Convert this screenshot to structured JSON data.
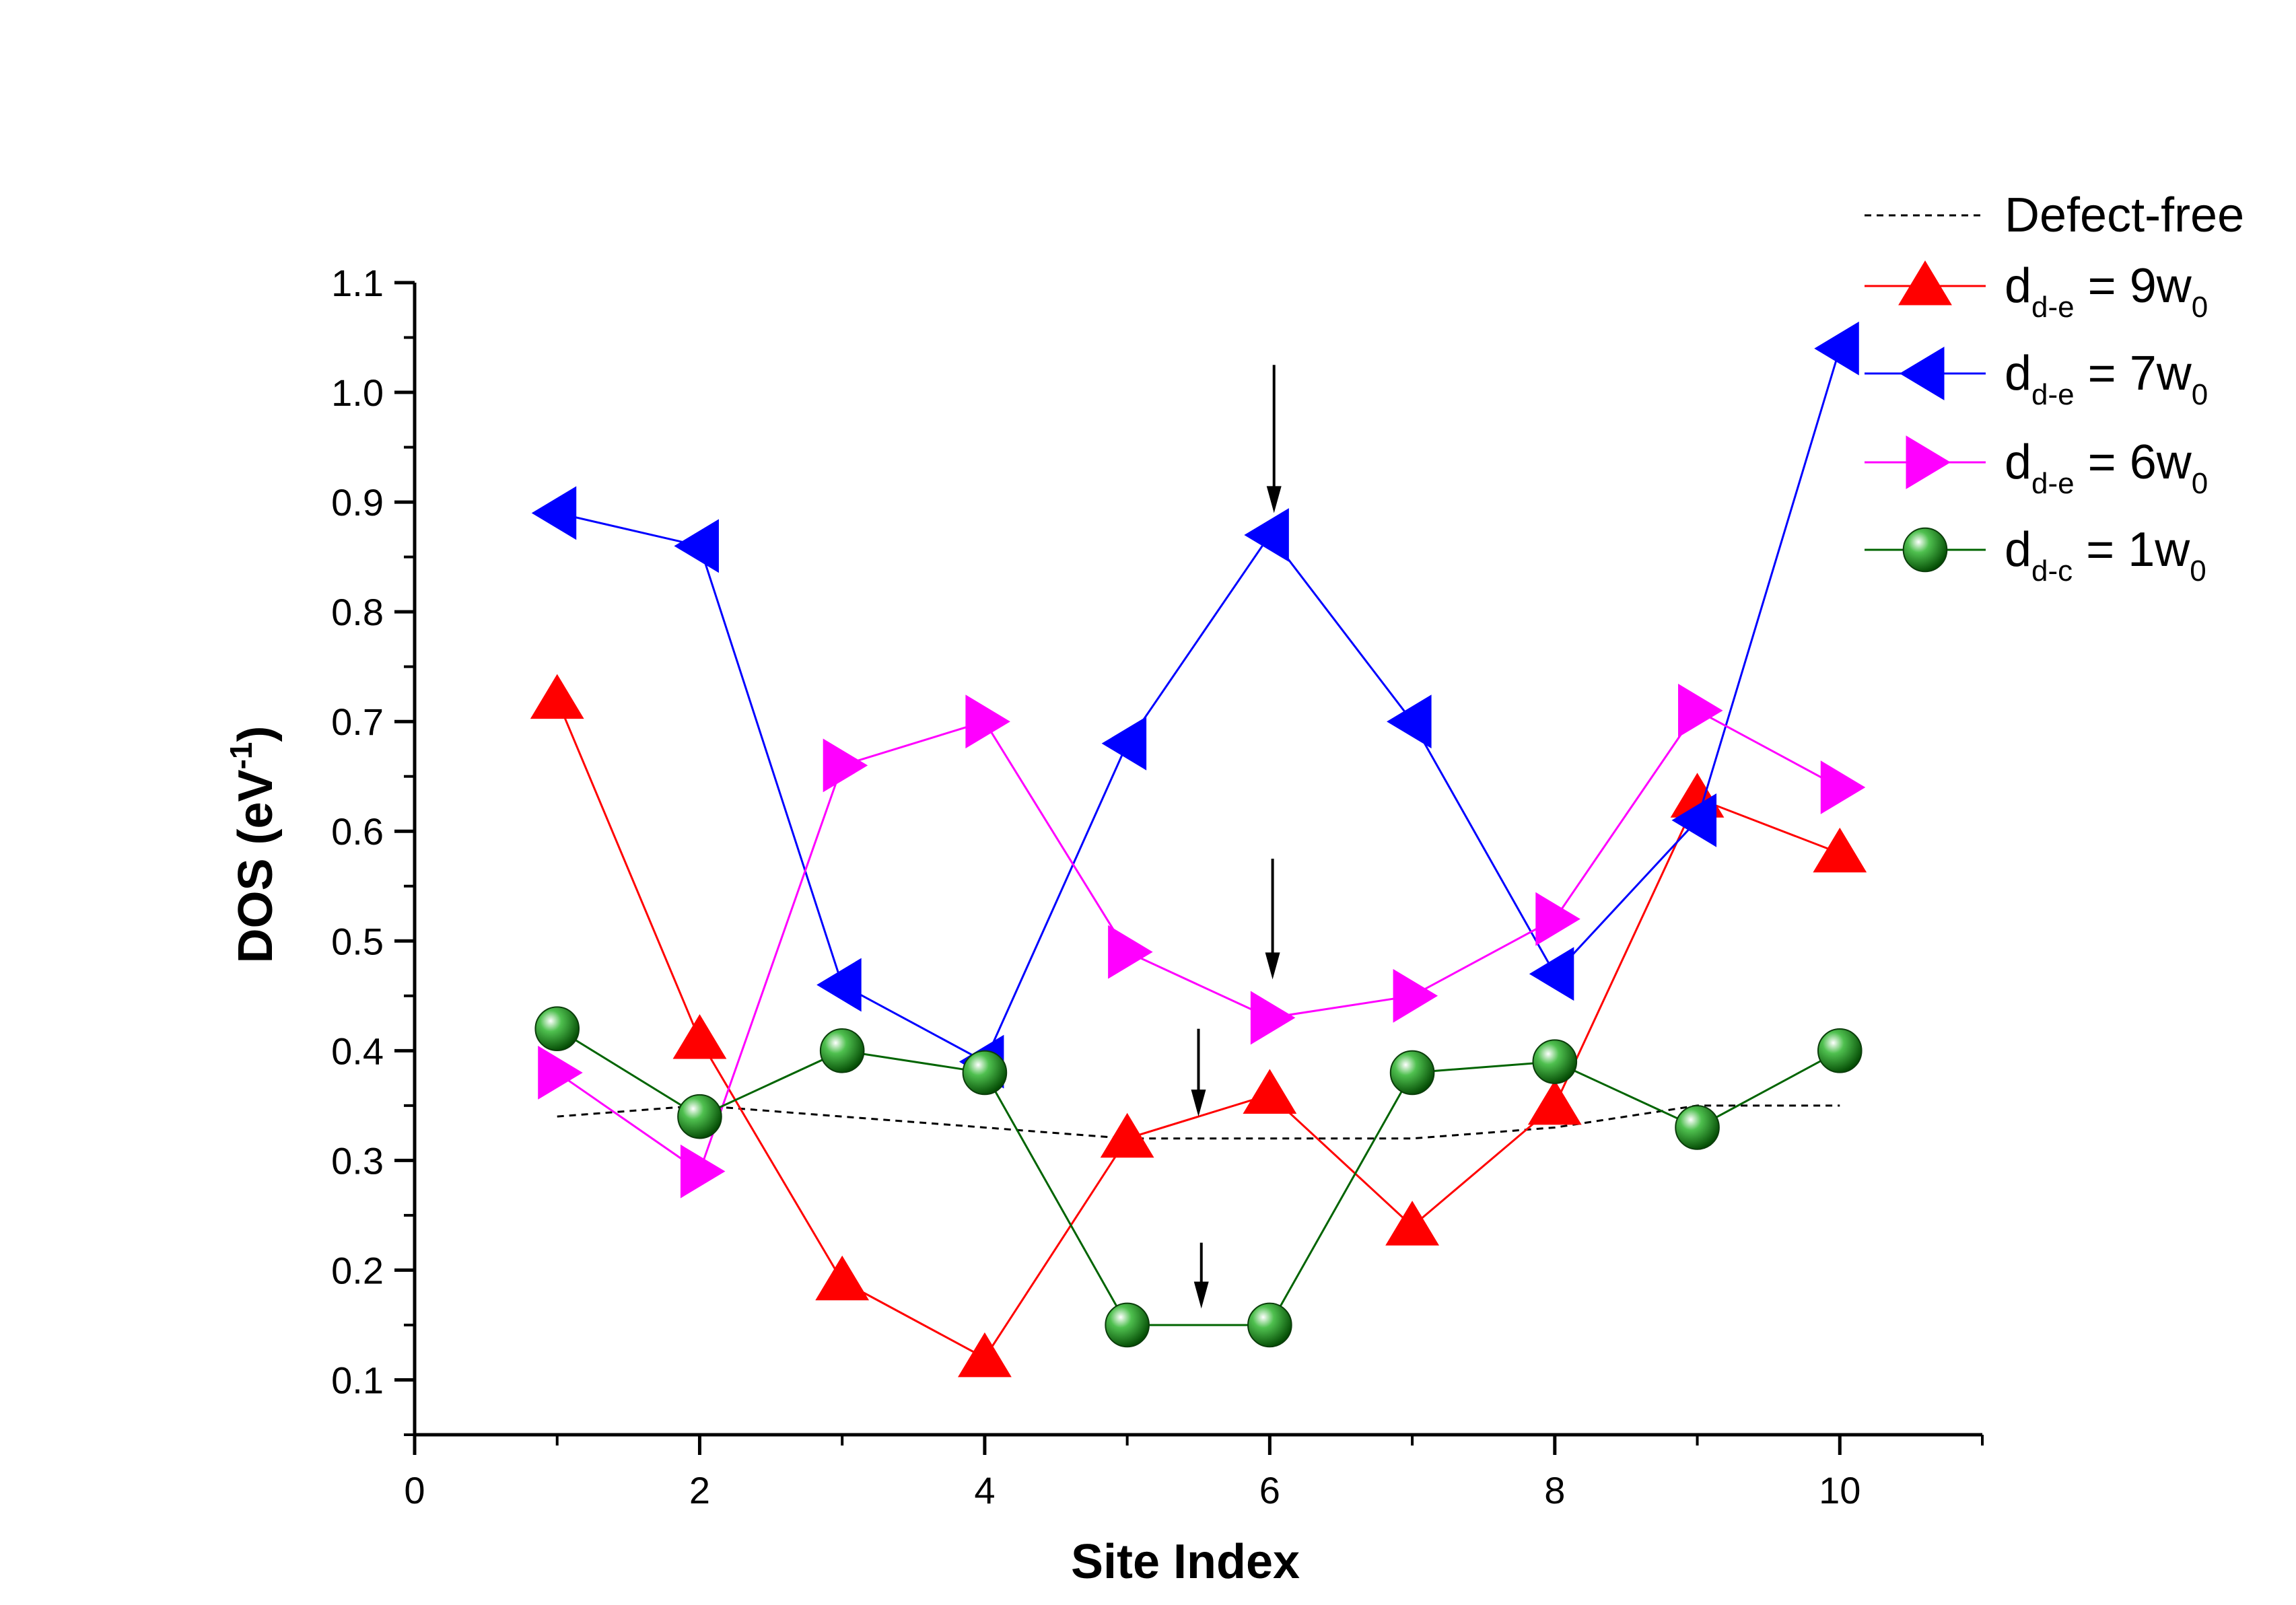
{
  "chart_data": {
    "type": "line",
    "title": "",
    "xlabel": "Site Index",
    "ylabel": {
      "main": "DOS (eV",
      "sup": "-1",
      "end": ")"
    },
    "xlim": [
      0,
      11
    ],
    "ylim": [
      0.05,
      1.1
    ],
    "x_ticks": [
      0,
      2,
      4,
      6,
      8,
      10
    ],
    "x_tick_labels": [
      "0",
      "2",
      "4",
      "6",
      "8",
      "10"
    ],
    "y_ticks": [
      0.1,
      0.2,
      0.3,
      0.4,
      0.5,
      0.6,
      0.7,
      0.8,
      0.9,
      1.0,
      1.1
    ],
    "y_tick_labels": [
      "0.1",
      "0.2",
      "0.3",
      "0.4",
      "0.5",
      "0.6",
      "0.7",
      "0.8",
      "0.9",
      "1.0",
      "1.1"
    ],
    "x": [
      1,
      2,
      3,
      4,
      5,
      6,
      7,
      8,
      9,
      10
    ],
    "legend_position": "top-right",
    "series": [
      {
        "name": "Defect-free",
        "label_main": "Defect-free",
        "color": "#000000",
        "dashed": true,
        "marker": "none",
        "x": [
          1,
          2,
          3,
          4,
          5,
          6,
          7,
          8,
          9,
          10
        ],
        "values": [
          0.34,
          0.35,
          0.34,
          0.33,
          0.32,
          0.32,
          0.32,
          0.33,
          0.35,
          0.35
        ]
      },
      {
        "name": "d_d-e = 9w_0",
        "label_main": "d",
        "label_sub": "d-e",
        "label_rest": " = 9w",
        "label_sub2": "0",
        "color": "#ff0000",
        "dashed": false,
        "marker": "triangle-up",
        "values": [
          0.72,
          0.41,
          0.19,
          0.12,
          0.32,
          0.36,
          0.24,
          0.35,
          0.63,
          0.58
        ]
      },
      {
        "name": "d_d-e = 7w_0",
        "label_main": "d",
        "label_sub": "d-e",
        "label_rest": " = 7w",
        "label_sub2": "0",
        "color": "#0000ff",
        "dashed": false,
        "marker": "triangle-left",
        "values": [
          0.89,
          0.86,
          0.46,
          0.39,
          0.68,
          0.87,
          0.7,
          0.47,
          0.61,
          1.04
        ]
      },
      {
        "name": "d_d-e = 6w_0",
        "label_main": "d",
        "label_sub": "d-e",
        "label_rest": " = 6w",
        "label_sub2": "0",
        "color": "#ff00ff",
        "dashed": false,
        "marker": "triangle-right",
        "values": [
          0.38,
          0.29,
          0.66,
          0.7,
          0.49,
          0.43,
          0.45,
          0.52,
          0.71,
          0.64
        ]
      },
      {
        "name": "d_d-c = 1w_0",
        "label_main": "d",
        "label_sub": "d-c",
        "label_rest": " = 1w",
        "label_sub2": "0",
        "color": "#0a7a0a",
        "line_color": "#006400",
        "dashed": false,
        "marker": "sphere",
        "values": [
          0.42,
          0.34,
          0.4,
          0.38,
          0.15,
          0.15,
          0.38,
          0.39,
          0.33,
          0.4
        ]
      }
    ],
    "annotations": [
      {
        "type": "arrow",
        "x": 6.03,
        "y_from": 1.025,
        "y_to": 0.89
      },
      {
        "type": "arrow",
        "x": 6.02,
        "y_from": 0.575,
        "y_to": 0.465
      },
      {
        "type": "arrow",
        "x": 5.5,
        "y_from": 0.42,
        "y_to": 0.34
      },
      {
        "type": "arrow",
        "x": 5.52,
        "y_from": 0.225,
        "y_to": 0.165
      }
    ]
  }
}
